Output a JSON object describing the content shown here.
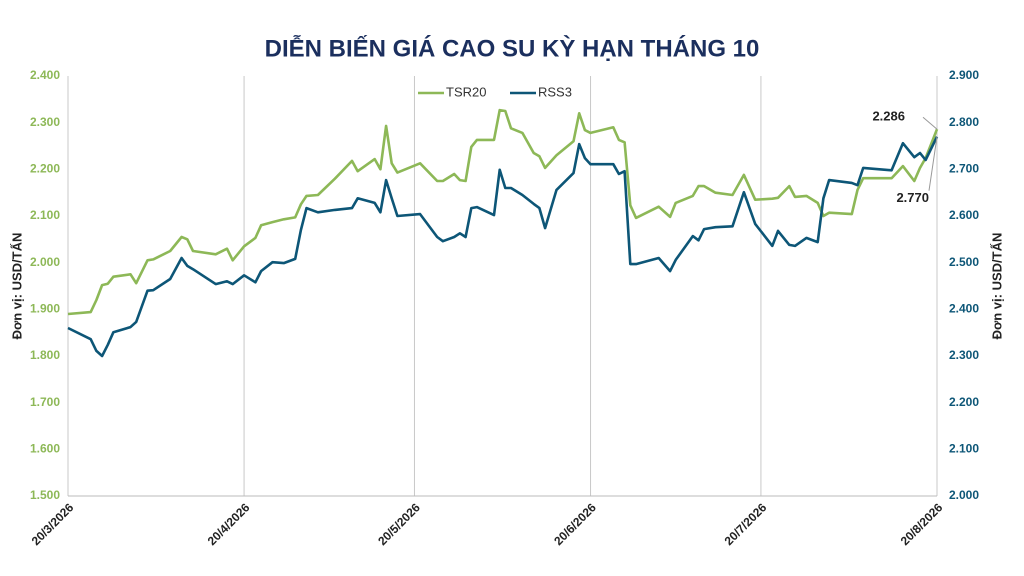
{
  "chart_data": {
    "type": "line",
    "title": "DIỄN BIẾN GIÁ CAO SU KỲ HẠN THÁNG 10",
    "y_label": "Đơn vị: USD/TẤN",
    "y2_label": "Đơn vị: USD/TẤN",
    "legend": "top",
    "x": [
      "2026-03-20",
      "2026-03-24",
      "2026-03-25",
      "2026-03-26",
      "2026-03-27",
      "2026-03-28",
      "2026-03-31",
      "2026-04-01",
      "2026-04-03",
      "2026-04-04",
      "2026-04-07",
      "2026-04-09",
      "2026-04-10",
      "2026-04-11",
      "2026-04-15",
      "2026-04-17",
      "2026-04-18",
      "2026-04-20",
      "2026-04-22",
      "2026-04-23",
      "2026-04-25",
      "2026-04-27",
      "2026-04-29",
      "2026-04-30",
      "2026-05-01",
      "2026-05-03",
      "2026-05-06",
      "2026-05-09",
      "2026-05-10",
      "2026-05-13",
      "2026-05-14",
      "2026-05-15",
      "2026-05-16",
      "2026-05-17",
      "2026-05-21",
      "2026-05-24",
      "2026-05-25",
      "2026-05-27",
      "2026-05-28",
      "2026-05-29",
      "2026-05-30",
      "2026-05-31",
      "2026-06-03",
      "2026-06-04",
      "2026-06-05",
      "2026-06-06",
      "2026-06-08",
      "2026-06-10",
      "2026-06-11",
      "2026-06-12",
      "2026-06-14",
      "2026-06-17",
      "2026-06-18",
      "2026-06-19",
      "2026-06-20",
      "2026-06-24",
      "2026-06-25",
      "2026-06-26",
      "2026-06-27",
      "2026-06-28",
      "2026-07-02",
      "2026-07-04",
      "2026-07-05",
      "2026-07-08",
      "2026-07-09",
      "2026-07-10",
      "2026-07-12",
      "2026-07-15",
      "2026-07-17",
      "2026-07-19",
      "2026-07-22",
      "2026-07-23",
      "2026-07-25",
      "2026-07-26",
      "2026-07-28",
      "2026-07-30",
      "2026-07-31",
      "2026-08-01",
      "2026-08-05",
      "2026-08-06",
      "2026-08-07",
      "2026-08-12",
      "2026-08-14",
      "2026-08-16",
      "2026-08-17",
      "2026-08-18",
      "2026-08-20"
    ],
    "xlim": [
      "2026-03-20",
      "2026-08-20"
    ],
    "xticks": [
      {
        "value": "2026-03-20",
        "label": "20/3/2026"
      },
      {
        "value": "2026-04-20",
        "label": "20/4/2026"
      },
      {
        "value": "2026-05-20",
        "label": "20/5/2026"
      },
      {
        "value": "2026-06-20",
        "label": "20/6/2026"
      },
      {
        "value": "2026-07-20",
        "label": "20/7/2026"
      },
      {
        "value": "2026-08-20",
        "label": "20/8/2026"
      }
    ],
    "ylim": [
      1500,
      2400
    ],
    "yticks": [
      {
        "value": 1500,
        "label": "1.500"
      },
      {
        "value": 1600,
        "label": "1.600"
      },
      {
        "value": 1700,
        "label": "1.700"
      },
      {
        "value": 1800,
        "label": "1.800"
      },
      {
        "value": 1900,
        "label": "1.900"
      },
      {
        "value": 2000,
        "label": "2.000"
      },
      {
        "value": 2100,
        "label": "2.100"
      },
      {
        "value": 2200,
        "label": "2.200"
      },
      {
        "value": 2300,
        "label": "2.300"
      },
      {
        "value": 2400,
        "label": "2.400"
      }
    ],
    "y2lim": [
      2000,
      2900
    ],
    "y2ticks": [
      {
        "value": 2000,
        "label": "2.000"
      },
      {
        "value": 2100,
        "label": "2.100"
      },
      {
        "value": 2200,
        "label": "2.200"
      },
      {
        "value": 2300,
        "label": "2.300"
      },
      {
        "value": 2400,
        "label": "2.400"
      },
      {
        "value": 2500,
        "label": "2.500"
      },
      {
        "value": 2600,
        "label": "2.600"
      },
      {
        "value": 2700,
        "label": "2.700"
      },
      {
        "value": 2800,
        "label": "2.800"
      },
      {
        "value": 2900,
        "label": "2.900"
      }
    ],
    "ytick_color": "#8db857",
    "y2tick_color": "#0d5677",
    "series": [
      {
        "name": "TSR20",
        "color": "#8db857",
        "axis": "y",
        "values": [
          1890,
          1894,
          1920,
          1952,
          1955,
          1970,
          1975,
          1956,
          2005,
          2007,
          2025,
          2055,
          2050,
          2025,
          2018,
          2030,
          2005,
          2035,
          2053,
          2080,
          2087,
          2093,
          2097,
          2125,
          2143,
          2145,
          2180,
          2218,
          2196,
          2222,
          2200,
          2293,
          2213,
          2193,
          2213,
          2175,
          2175,
          2190,
          2177,
          2175,
          2248,
          2263,
          2263,
          2327,
          2325,
          2288,
          2278,
          2235,
          2228,
          2203,
          2230,
          2260,
          2320,
          2284,
          2278,
          2290,
          2263,
          2258,
          2123,
          2096,
          2120,
          2098,
          2128,
          2143,
          2164,
          2164,
          2150,
          2145,
          2188,
          2135,
          2137,
          2139,
          2164,
          2141,
          2143,
          2128,
          2100,
          2107,
          2104,
          2156,
          2181,
          2181,
          2207,
          2175,
          2203,
          2224,
          2286
        ],
        "value_labels": [
          null,
          null,
          null,
          null,
          null,
          null,
          null,
          null,
          null,
          null,
          null,
          null,
          null,
          null,
          null,
          null,
          null,
          null,
          null,
          null,
          null,
          null,
          null,
          null,
          null,
          null,
          null,
          null,
          null,
          null,
          null,
          null,
          null,
          null,
          null,
          null,
          null,
          null,
          null,
          null,
          null,
          null,
          null,
          null,
          null,
          null,
          null,
          null,
          null,
          null,
          null,
          null,
          null,
          null,
          null,
          null,
          null,
          null,
          null,
          null,
          null,
          null,
          null,
          null,
          null,
          null,
          null,
          null,
          null,
          null,
          null,
          null,
          null,
          null,
          null,
          null,
          null,
          null,
          null,
          null,
          null,
          null,
          null,
          null,
          null,
          null,
          "2.286"
        ]
      },
      {
        "name": "RSS3",
        "color": "#0d5677",
        "axis": "y2",
        "values": [
          2360,
          2336,
          2311,
          2300,
          2324,
          2351,
          2362,
          2373,
          2440,
          2441,
          2465,
          2510,
          2493,
          2486,
          2454,
          2460,
          2454,
          2473,
          2458,
          2482,
          2501,
          2499,
          2508,
          2570,
          2617,
          2608,
          2613,
          2617,
          2638,
          2628,
          2608,
          2677,
          2638,
          2600,
          2604,
          2555,
          2546,
          2555,
          2563,
          2555,
          2617,
          2619,
          2602,
          2699,
          2660,
          2660,
          2645,
          2626,
          2617,
          2574,
          2656,
          2692,
          2754,
          2724,
          2711,
          2711,
          2690,
          2696,
          2497,
          2497,
          2510,
          2482,
          2506,
          2557,
          2548,
          2572,
          2576,
          2578,
          2651,
          2583,
          2536,
          2568,
          2538,
          2536,
          2553,
          2544,
          2638,
          2677,
          2671,
          2666,
          2703,
          2698,
          2756,
          2726,
          2735,
          2720,
          2770
        ],
        "value_labels": [
          null,
          null,
          null,
          null,
          null,
          null,
          null,
          null,
          null,
          null,
          null,
          null,
          null,
          null,
          null,
          null,
          null,
          null,
          null,
          null,
          null,
          null,
          null,
          null,
          null,
          null,
          null,
          null,
          null,
          null,
          null,
          null,
          null,
          null,
          null,
          null,
          null,
          null,
          null,
          null,
          null,
          null,
          null,
          null,
          null,
          null,
          null,
          null,
          null,
          null,
          null,
          null,
          null,
          null,
          null,
          null,
          null,
          null,
          null,
          null,
          null,
          null,
          null,
          null,
          null,
          null,
          null,
          null,
          null,
          null,
          null,
          null,
          null,
          null,
          null,
          null,
          null,
          null,
          null,
          null,
          null,
          null,
          null,
          null,
          null,
          null,
          "2.770"
        ]
      }
    ]
  }
}
